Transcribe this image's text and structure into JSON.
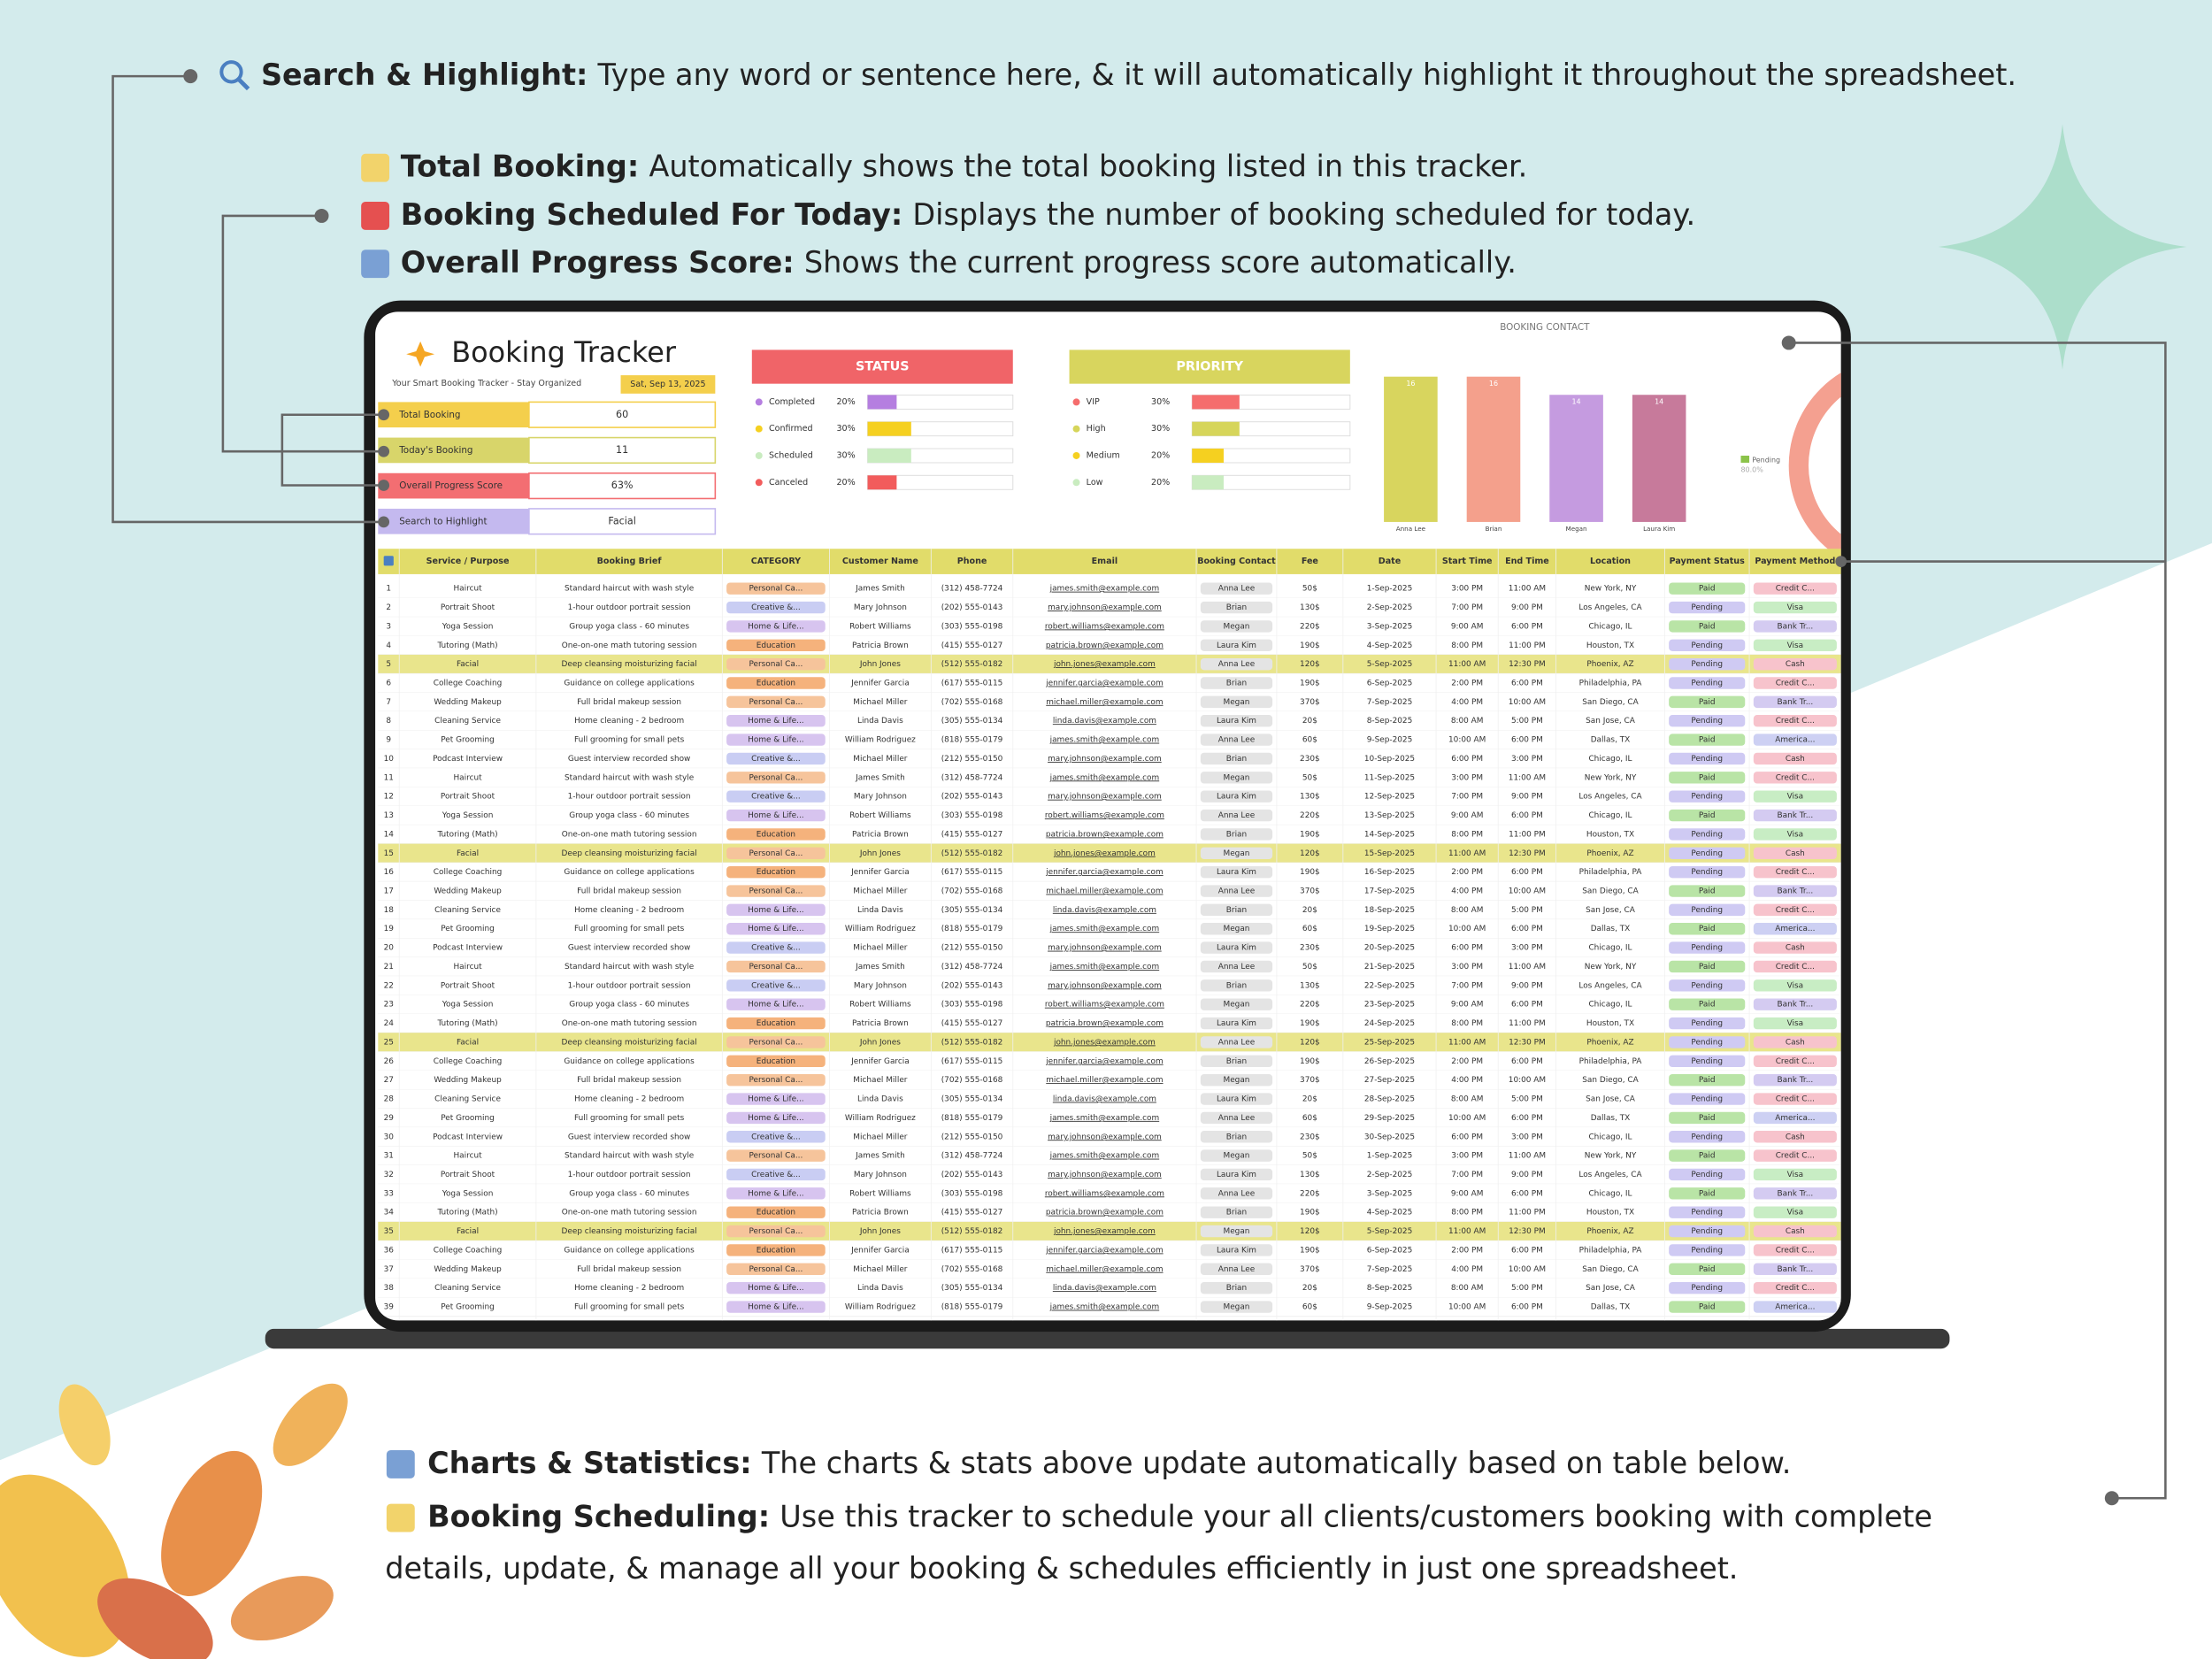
{
  "annotations": {
    "top": [
      {
        "label": "Search & Highlight:",
        "text": "Type any word or sentence here, & it will automatically highlight it throughout the spreadsheet."
      },
      {
        "label": "Total Booking:",
        "text": "Automatically shows the total booking listed in this tracker."
      },
      {
        "label": "Booking Scheduled For Today:",
        "text": "Displays the number of booking scheduled for today."
      },
      {
        "label": "Overall Progress Score:",
        "text": "Shows the current progress score automatically."
      }
    ],
    "bottom": [
      {
        "label": "Charts & Statistics:",
        "text": [
          "The charts & stats above update automatically based on table below."
        ]
      },
      {
        "label": "Booking Scheduling:",
        "text": [
          "Use this tracker to schedule your all clients/customers booking with complete",
          "details, update, & manage all your booking & schedules efficiently in just one spreadsheet."
        ]
      }
    ]
  },
  "tracker": {
    "title": "Booking Tracker",
    "subtitle": "Your Smart Booking Tracker - Stay Organized",
    "date": "Sat, Sep 13, 2025",
    "kpis": [
      {
        "label": "Total Booking",
        "value": "60",
        "color": "#f4cf4c"
      },
      {
        "label": "Today's Booking",
        "value": "11",
        "color": "#d8d56a"
      },
      {
        "label": "Overall Progress Score",
        "value": "63%",
        "color": "#f36e72"
      },
      {
        "label": "Search to Highlight",
        "value": "Facial",
        "color": "#c4b9ef"
      }
    ]
  },
  "status": {
    "title": "STATUS",
    "header_color": "#f06468",
    "categories": [
      "Completed",
      "Confirmed",
      "Scheduled",
      "Canceled"
    ],
    "values": [
      20,
      30,
      30,
      20
    ],
    "value_labels": [
      "20%",
      "30%",
      "30%",
      "20%"
    ],
    "colors": [
      "#b57ee0",
      "#f5d020",
      "#c9ecc0",
      "#f25c5c"
    ],
    "xlim": [
      0,
      100
    ]
  },
  "priority": {
    "title": "PRIORITY",
    "header_color": "#d8d55e",
    "categories": [
      "VIP",
      "High",
      "Medium",
      "Low"
    ],
    "values": [
      30,
      30,
      20,
      20
    ],
    "value_labels": [
      "30%",
      "30%",
      "20%",
      "20%"
    ],
    "colors": [
      "#f56d6d",
      "#d6d55a",
      "#f5d020",
      "#c9ecc0"
    ],
    "xlim": [
      0,
      100
    ]
  },
  "contact_chart": {
    "type": "bar",
    "title": "BOOKING CONTACT",
    "categories": [
      "Anna Lee",
      "Brian",
      "Megan",
      "Laura Kim"
    ],
    "values": [
      16,
      16,
      14,
      14
    ],
    "colors": [
      "#d8d55e",
      "#f4a08c",
      "#c59be0",
      "#c77a9b"
    ],
    "ylim": [
      0,
      16
    ]
  },
  "payment_chart": {
    "label": "Pending",
    "value_label": "80.0%"
  },
  "table": {
    "headers": [
      "Service / Purpose",
      "Booking Brief",
      "CATEGORY",
      "Customer Name",
      "Phone",
      "Email",
      "Booking Contact",
      "Fee",
      "Date",
      "Start Time",
      "End Time",
      "Location",
      "Payment Status",
      "Payment Method"
    ],
    "pill_colors": {
      "Personal Ca...": "#f6c49b",
      "Creative &...": "#c9cdf3",
      "Home & Life...": "#d7c4ef",
      "Education": "#f5b27c",
      "Anna Lee": "#e4e4e4",
      "Brian": "#e4e4e4",
      "Megan": "#e4e4e4",
      "Laura Kim": "#e4e4e4",
      "Paid": "#b9e4a6",
      "Pending": "#cfcaf3",
      "Credit C...": "#f7c3cc",
      "Visa": "#c8edc4",
      "Bank Tr...": "#d4cbf1",
      "Cash": "#f7c3cc",
      "America...": "#cdd0f3"
    },
    "header_color": "#e1dc6a",
    "highlight_color": "#e9e58c",
    "rows": [
      [
        "1",
        "Haircut",
        "Standard haircut with wash style",
        "Personal Ca...",
        "James Smith",
        "(312) 458-7724",
        "james.smith@example.com",
        "Anna Lee",
        "50$",
        "1-Sep-2025",
        "3:00 PM",
        "11:00 AM",
        "New York, NY",
        "Paid",
        "Credit C..."
      ],
      [
        "2",
        "Portrait Shoot",
        "1-hour outdoor portrait session",
        "Creative &...",
        "Mary Johnson",
        "(202) 555-0143",
        "mary.johnson@example.com",
        "Brian",
        "130$",
        "2-Sep-2025",
        "7:00 PM",
        "9:00 PM",
        "Los Angeles, CA",
        "Pending",
        "Visa"
      ],
      [
        "3",
        "Yoga Session",
        "Group yoga class - 60 minutes",
        "Home & Life...",
        "Robert Williams",
        "(303) 555-0198",
        "robert.williams@example.com",
        "Megan",
        "220$",
        "3-Sep-2025",
        "9:00 AM",
        "6:00 PM",
        "Chicago, IL",
        "Paid",
        "Bank Tr..."
      ],
      [
        "4",
        "Tutoring (Math)",
        "One-on-one math tutoring session",
        "Education",
        "Patricia Brown",
        "(415) 555-0127",
        "patricia.brown@example.com",
        "Laura Kim",
        "190$",
        "4-Sep-2025",
        "8:00 PM",
        "11:00 PM",
        "Houston, TX",
        "Pending",
        "Visa"
      ],
      [
        "5",
        "Facial",
        "Deep cleansing moisturizing facial",
        "Personal Ca...",
        "John Jones",
        "(512) 555-0182",
        "john.jones@example.com",
        "Anna Lee",
        "120$",
        "5-Sep-2025",
        "11:00 AM",
        "12:30 PM",
        "Phoenix, AZ",
        "Pending",
        "Cash"
      ],
      [
        "6",
        "College Coaching",
        "Guidance on college applications",
        "Education",
        "Jennifer Garcia",
        "(617) 555-0115",
        "jennifer.garcia@example.com",
        "Brian",
        "190$",
        "6-Sep-2025",
        "2:00 PM",
        "6:00 PM",
        "Philadelphia, PA",
        "Pending",
        "Credit C..."
      ],
      [
        "7",
        "Wedding Makeup",
        "Full bridal makeup session",
        "Personal Ca...",
        "Michael Miller",
        "(702) 555-0168",
        "michael.miller@example.com",
        "Megan",
        "370$",
        "7-Sep-2025",
        "4:00 PM",
        "10:00 AM",
        "San Diego, CA",
        "Paid",
        "Bank Tr..."
      ],
      [
        "8",
        "Cleaning Service",
        "Home cleaning - 2 bedroom",
        "Home & Life...",
        "Linda Davis",
        "(305) 555-0134",
        "linda.davis@example.com",
        "Laura Kim",
        "20$",
        "8-Sep-2025",
        "8:00 AM",
        "5:00 PM",
        "San Jose, CA",
        "Pending",
        "Credit C..."
      ],
      [
        "9",
        "Pet Grooming",
        "Full grooming for small pets",
        "Home & Life...",
        "William Rodriguez",
        "(818) 555-0179",
        "james.smith@example.com",
        "Anna Lee",
        "60$",
        "9-Sep-2025",
        "10:00 AM",
        "6:00 PM",
        "Dallas, TX",
        "Paid",
        "America..."
      ],
      [
        "10",
        "Podcast Interview",
        "Guest interview recorded show",
        "Creative &...",
        "Michael Miller",
        "(212) 555-0150",
        "mary.johnson@example.com",
        "Brian",
        "230$",
        "10-Sep-2025",
        "6:00 PM",
        "3:00 PM",
        "Chicago, IL",
        "Pending",
        "Cash"
      ],
      [
        "11",
        "Haircut",
        "Standard haircut with wash style",
        "Personal Ca...",
        "James Smith",
        "(312) 458-7724",
        "james.smith@example.com",
        "Megan",
        "50$",
        "11-Sep-2025",
        "3:00 PM",
        "11:00 AM",
        "New York, NY",
        "Paid",
        "Credit C..."
      ],
      [
        "12",
        "Portrait Shoot",
        "1-hour outdoor portrait session",
        "Creative &...",
        "Mary Johnson",
        "(202) 555-0143",
        "mary.johnson@example.com",
        "Laura Kim",
        "130$",
        "12-Sep-2025",
        "7:00 PM",
        "9:00 PM",
        "Los Angeles, CA",
        "Pending",
        "Visa"
      ],
      [
        "13",
        "Yoga Session",
        "Group yoga class - 60 minutes",
        "Home & Life...",
        "Robert Williams",
        "(303) 555-0198",
        "robert.williams@example.com",
        "Anna Lee",
        "220$",
        "13-Sep-2025",
        "9:00 AM",
        "6:00 PM",
        "Chicago, IL",
        "Paid",
        "Bank Tr..."
      ],
      [
        "14",
        "Tutoring (Math)",
        "One-on-one math tutoring session",
        "Education",
        "Patricia Brown",
        "(415) 555-0127",
        "patricia.brown@example.com",
        "Brian",
        "190$",
        "14-Sep-2025",
        "8:00 PM",
        "11:00 PM",
        "Houston, TX",
        "Pending",
        "Visa"
      ],
      [
        "15",
        "Facial",
        "Deep cleansing moisturizing facial",
        "Personal Ca...",
        "John Jones",
        "(512) 555-0182",
        "john.jones@example.com",
        "Megan",
        "120$",
        "15-Sep-2025",
        "11:00 AM",
        "12:30 PM",
        "Phoenix, AZ",
        "Pending",
        "Cash"
      ],
      [
        "16",
        "College Coaching",
        "Guidance on college applications",
        "Education",
        "Jennifer Garcia",
        "(617) 555-0115",
        "jennifer.garcia@example.com",
        "Laura Kim",
        "190$",
        "16-Sep-2025",
        "2:00 PM",
        "6:00 PM",
        "Philadelphia, PA",
        "Pending",
        "Credit C..."
      ],
      [
        "17",
        "Wedding Makeup",
        "Full bridal makeup session",
        "Personal Ca...",
        "Michael Miller",
        "(702) 555-0168",
        "michael.miller@example.com",
        "Anna Lee",
        "370$",
        "17-Sep-2025",
        "4:00 PM",
        "10:00 AM",
        "San Diego, CA",
        "Paid",
        "Bank Tr..."
      ],
      [
        "18",
        "Cleaning Service",
        "Home cleaning - 2 bedroom",
        "Home & Life...",
        "Linda Davis",
        "(305) 555-0134",
        "linda.davis@example.com",
        "Brian",
        "20$",
        "18-Sep-2025",
        "8:00 AM",
        "5:00 PM",
        "San Jose, CA",
        "Pending",
        "Credit C..."
      ],
      [
        "19",
        "Pet Grooming",
        "Full grooming for small pets",
        "Home & Life...",
        "William Rodriguez",
        "(818) 555-0179",
        "james.smith@example.com",
        "Megan",
        "60$",
        "19-Sep-2025",
        "10:00 AM",
        "6:00 PM",
        "Dallas, TX",
        "Paid",
        "America..."
      ],
      [
        "20",
        "Podcast Interview",
        "Guest interview recorded show",
        "Creative &...",
        "Michael Miller",
        "(212) 555-0150",
        "mary.johnson@example.com",
        "Laura Kim",
        "230$",
        "20-Sep-2025",
        "6:00 PM",
        "3:00 PM",
        "Chicago, IL",
        "Pending",
        "Cash"
      ],
      [
        "21",
        "Haircut",
        "Standard haircut with wash style",
        "Personal Ca...",
        "James Smith",
        "(312) 458-7724",
        "james.smith@example.com",
        "Anna Lee",
        "50$",
        "21-Sep-2025",
        "3:00 PM",
        "11:00 AM",
        "New York, NY",
        "Paid",
        "Credit C..."
      ],
      [
        "22",
        "Portrait Shoot",
        "1-hour outdoor portrait session",
        "Creative &...",
        "Mary Johnson",
        "(202) 555-0143",
        "mary.johnson@example.com",
        "Brian",
        "130$",
        "22-Sep-2025",
        "7:00 PM",
        "9:00 PM",
        "Los Angeles, CA",
        "Pending",
        "Visa"
      ],
      [
        "23",
        "Yoga Session",
        "Group yoga class - 60 minutes",
        "Home & Life...",
        "Robert Williams",
        "(303) 555-0198",
        "robert.williams@example.com",
        "Megan",
        "220$",
        "23-Sep-2025",
        "9:00 AM",
        "6:00 PM",
        "Chicago, IL",
        "Paid",
        "Bank Tr..."
      ],
      [
        "24",
        "Tutoring (Math)",
        "One-on-one math tutoring session",
        "Education",
        "Patricia Brown",
        "(415) 555-0127",
        "patricia.brown@example.com",
        "Laura Kim",
        "190$",
        "24-Sep-2025",
        "8:00 PM",
        "11:00 PM",
        "Houston, TX",
        "Pending",
        "Visa"
      ],
      [
        "25",
        "Facial",
        "Deep cleansing moisturizing facial",
        "Personal Ca...",
        "John Jones",
        "(512) 555-0182",
        "john.jones@example.com",
        "Anna Lee",
        "120$",
        "25-Sep-2025",
        "11:00 AM",
        "12:30 PM",
        "Phoenix, AZ",
        "Pending",
        "Cash"
      ],
      [
        "26",
        "College Coaching",
        "Guidance on college applications",
        "Education",
        "Jennifer Garcia",
        "(617) 555-0115",
        "jennifer.garcia@example.com",
        "Brian",
        "190$",
        "26-Sep-2025",
        "2:00 PM",
        "6:00 PM",
        "Philadelphia, PA",
        "Pending",
        "Credit C..."
      ],
      [
        "27",
        "Wedding Makeup",
        "Full bridal makeup session",
        "Personal Ca...",
        "Michael Miller",
        "(702) 555-0168",
        "michael.miller@example.com",
        "Megan",
        "370$",
        "27-Sep-2025",
        "4:00 PM",
        "10:00 AM",
        "San Diego, CA",
        "Paid",
        "Bank Tr..."
      ],
      [
        "28",
        "Cleaning Service",
        "Home cleaning - 2 bedroom",
        "Home & Life...",
        "Linda Davis",
        "(305) 555-0134",
        "linda.davis@example.com",
        "Laura Kim",
        "20$",
        "28-Sep-2025",
        "8:00 AM",
        "5:00 PM",
        "San Jose, CA",
        "Pending",
        "Credit C..."
      ],
      [
        "29",
        "Pet Grooming",
        "Full grooming for small pets",
        "Home & Life...",
        "William Rodriguez",
        "(818) 555-0179",
        "james.smith@example.com",
        "Anna Lee",
        "60$",
        "29-Sep-2025",
        "10:00 AM",
        "6:00 PM",
        "Dallas, TX",
        "Paid",
        "America..."
      ],
      [
        "30",
        "Podcast Interview",
        "Guest interview recorded show",
        "Creative &...",
        "Michael Miller",
        "(212) 555-0150",
        "mary.johnson@example.com",
        "Brian",
        "230$",
        "30-Sep-2025",
        "6:00 PM",
        "3:00 PM",
        "Chicago, IL",
        "Pending",
        "Cash"
      ],
      [
        "31",
        "Haircut",
        "Standard haircut with wash style",
        "Personal Ca...",
        "James Smith",
        "(312) 458-7724",
        "james.smith@example.com",
        "Megan",
        "50$",
        "1-Sep-2025",
        "3:00 PM",
        "11:00 AM",
        "New York, NY",
        "Paid",
        "Credit C..."
      ],
      [
        "32",
        "Portrait Shoot",
        "1-hour outdoor portrait session",
        "Creative &...",
        "Mary Johnson",
        "(202) 555-0143",
        "mary.johnson@example.com",
        "Laura Kim",
        "130$",
        "2-Sep-2025",
        "7:00 PM",
        "9:00 PM",
        "Los Angeles, CA",
        "Pending",
        "Visa"
      ],
      [
        "33",
        "Yoga Session",
        "Group yoga class - 60 minutes",
        "Home & Life...",
        "Robert Williams",
        "(303) 555-0198",
        "robert.williams@example.com",
        "Anna Lee",
        "220$",
        "3-Sep-2025",
        "9:00 AM",
        "6:00 PM",
        "Chicago, IL",
        "Paid",
        "Bank Tr..."
      ],
      [
        "34",
        "Tutoring (Math)",
        "One-on-one math tutoring session",
        "Education",
        "Patricia Brown",
        "(415) 555-0127",
        "patricia.brown@example.com",
        "Brian",
        "190$",
        "4-Sep-2025",
        "8:00 PM",
        "11:00 PM",
        "Houston, TX",
        "Pending",
        "Visa"
      ],
      [
        "35",
        "Facial",
        "Deep cleansing moisturizing facial",
        "Personal Ca...",
        "John Jones",
        "(512) 555-0182",
        "john.jones@example.com",
        "Megan",
        "120$",
        "5-Sep-2025",
        "11:00 AM",
        "12:30 PM",
        "Phoenix, AZ",
        "Pending",
        "Cash"
      ],
      [
        "36",
        "College Coaching",
        "Guidance on college applications",
        "Education",
        "Jennifer Garcia",
        "(617) 555-0115",
        "jennifer.garcia@example.com",
        "Laura Kim",
        "190$",
        "6-Sep-2025",
        "2:00 PM",
        "6:00 PM",
        "Philadelphia, PA",
        "Pending",
        "Credit C..."
      ],
      [
        "37",
        "Wedding Makeup",
        "Full bridal makeup session",
        "Personal Ca...",
        "Michael Miller",
        "(702) 555-0168",
        "michael.miller@example.com",
        "Anna Lee",
        "370$",
        "7-Sep-2025",
        "4:00 PM",
        "10:00 AM",
        "San Diego, CA",
        "Paid",
        "Bank Tr..."
      ],
      [
        "38",
        "Cleaning Service",
        "Home cleaning - 2 bedroom",
        "Home & Life...",
        "Linda Davis",
        "(305) 555-0134",
        "linda.davis@example.com",
        "Brian",
        "20$",
        "8-Sep-2025",
        "8:00 AM",
        "5:00 PM",
        "San Jose, CA",
        "Pending",
        "Credit C..."
      ],
      [
        "39",
        "Pet Grooming",
        "Full grooming for small pets",
        "Home & Life...",
        "William Rodriguez",
        "(818) 555-0179",
        "james.smith@example.com",
        "Megan",
        "60$",
        "9-Sep-2025",
        "10:00 AM",
        "6:00 PM",
        "Dallas, TX",
        "Paid",
        "America..."
      ]
    ]
  }
}
